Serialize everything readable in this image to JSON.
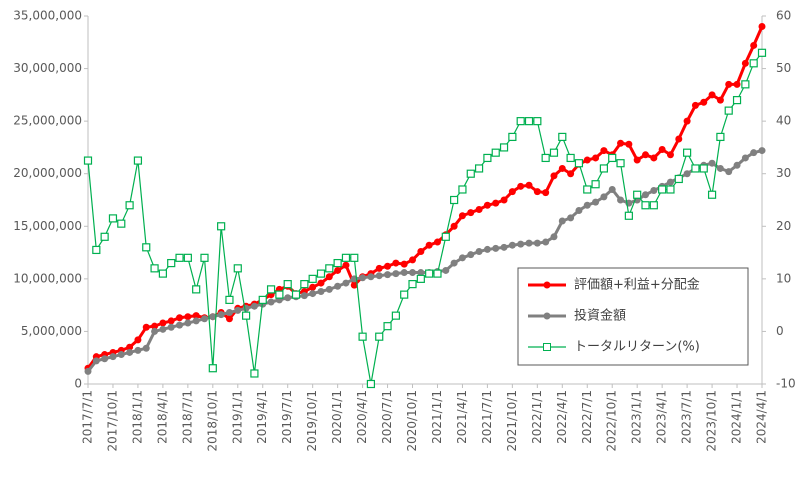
{
  "chart_data": {
    "type": "line",
    "categories": [
      "2017/7/1",
      null,
      null,
      "2017/10/1",
      null,
      null,
      "2018/1/1",
      null,
      null,
      "2018/4/1",
      null,
      null,
      "2018/7/1",
      null,
      null,
      "2018/10/1",
      null,
      null,
      "2019/1/1",
      null,
      null,
      "2019/4/1",
      null,
      null,
      "2019/7/1",
      null,
      null,
      "2019/10/1",
      null,
      null,
      "2020/1/1",
      null,
      null,
      "2020/4/1",
      null,
      null,
      "2020/7/1",
      null,
      null,
      "2020/10/1",
      null,
      null,
      "2021/1/1",
      null,
      null,
      "2021/4/1",
      null,
      null,
      "2021/7/1",
      null,
      null,
      "2021/10/1",
      null,
      null,
      "2022/1/1",
      null,
      null,
      "2022/4/1",
      null,
      null,
      "2022/7/1",
      null,
      null,
      "2022/10/1",
      null,
      null,
      "2023/1/1",
      null,
      null,
      "2023/4/1",
      null,
      null,
      "2023/7/1",
      null,
      null,
      "2023/10/1",
      null,
      null,
      "2024/1/1",
      null,
      null,
      "2024/4/1"
    ],
    "series": [
      {
        "name": "評価額+利益+分配金",
        "color": "#ff0000",
        "marker": "circle",
        "values": [
          1500000,
          2600000,
          2800000,
          3000000,
          3200000,
          3500000,
          4200000,
          5400000,
          5500000,
          5800000,
          6000000,
          6300000,
          6400000,
          6500000,
          6300000,
          6400000,
          6800000,
          6200000,
          7200000,
          7400000,
          7600000,
          8000000,
          8500000,
          9000000,
          9300000,
          8600000,
          8800000,
          9200000,
          9600000,
          10200000,
          10800000,
          11300000,
          9400000,
          10200000,
          10500000,
          11000000,
          11200000,
          11500000,
          11400000,
          11800000,
          12600000,
          13200000,
          13500000,
          14200000,
          15000000,
          16000000,
          16300000,
          16600000,
          17000000,
          17200000,
          17500000,
          18300000,
          18800000,
          18900000,
          18300000,
          18200000,
          19800000,
          20500000,
          20000000,
          20900000,
          21300000,
          21500000,
          22200000,
          21800000,
          22900000,
          22800000,
          21300000,
          21800000,
          21500000,
          22300000,
          21800000,
          23300000,
          25000000,
          26500000,
          26800000,
          27500000,
          27000000,
          28500000,
          28500000,
          30500000,
          32200000,
          34000000
        ]
      },
      {
        "name": "投資金額",
        "color": "#808080",
        "marker": "circle",
        "values": [
          1200000,
          2200000,
          2400000,
          2600000,
          2800000,
          3000000,
          3200000,
          3400000,
          5000000,
          5200000,
          5400000,
          5600000,
          5800000,
          6000000,
          6200000,
          6400000,
          6600000,
          6800000,
          7000000,
          7200000,
          7400000,
          7600000,
          7800000,
          8000000,
          8200000,
          8300000,
          8400000,
          8600000,
          8800000,
          9000000,
          9300000,
          9600000,
          10000000,
          10100000,
          10200000,
          10300000,
          10400000,
          10500000,
          10600000,
          10600000,
          10600000,
          10600000,
          10700000,
          10800000,
          11500000,
          12000000,
          12300000,
          12600000,
          12800000,
          12900000,
          13000000,
          13200000,
          13300000,
          13400000,
          13400000,
          13500000,
          14000000,
          15500000,
          15800000,
          16500000,
          17000000,
          17300000,
          17800000,
          18500000,
          17500000,
          17200000,
          17500000,
          18000000,
          18400000,
          18800000,
          19200000,
          19600000,
          20000000,
          20500000,
          20800000,
          21000000,
          20500000,
          20200000,
          20800000,
          21500000,
          22000000,
          22200000
        ]
      },
      {
        "name": "トータルリターン(%)",
        "color": "#00b050",
        "marker": "square",
        "axis": "y2",
        "values": [
          32.5,
          15.5,
          18,
          21.5,
          20.5,
          24,
          32.5,
          16,
          12,
          11,
          13,
          14,
          14,
          8,
          14,
          -7,
          20,
          6,
          12,
          3,
          -8,
          6,
          8,
          7,
          9,
          7,
          9,
          10,
          11,
          12,
          13,
          14,
          14,
          -1,
          -10,
          -1,
          1,
          3,
          7,
          9,
          10,
          11,
          11,
          18,
          25,
          27,
          30,
          31,
          33,
          34,
          35,
          37,
          40,
          40,
          40,
          33,
          34,
          37,
          33,
          32,
          27,
          28,
          31,
          33,
          32,
          22,
          26,
          24,
          24,
          27,
          27,
          29,
          34,
          31,
          31,
          26,
          37,
          42,
          44,
          47,
          51,
          53
        ]
      }
    ],
    "ylim": [
      0,
      35000000
    ],
    "yticks": [
      0,
      {
        "value": 5000000,
        "label": "5,000,000"
      },
      {
        "value": 10000000,
        "label": "10,000,000"
      },
      {
        "value": 15000000,
        "label": "15,000,000"
      },
      {
        "value": 20000000,
        "label": "20,000,000"
      },
      {
        "value": 25000000,
        "label": "25,000,000"
      },
      {
        "value": 30000000,
        "label": "30,000,000"
      },
      {
        "value": 35000000,
        "label": "35,000,000"
      }
    ],
    "y2lim": [
      -10,
      60
    ],
    "y2ticks": [
      -10,
      0,
      10,
      20,
      30,
      40,
      50,
      60
    ],
    "grid": false,
    "legend": "lower-right"
  }
}
